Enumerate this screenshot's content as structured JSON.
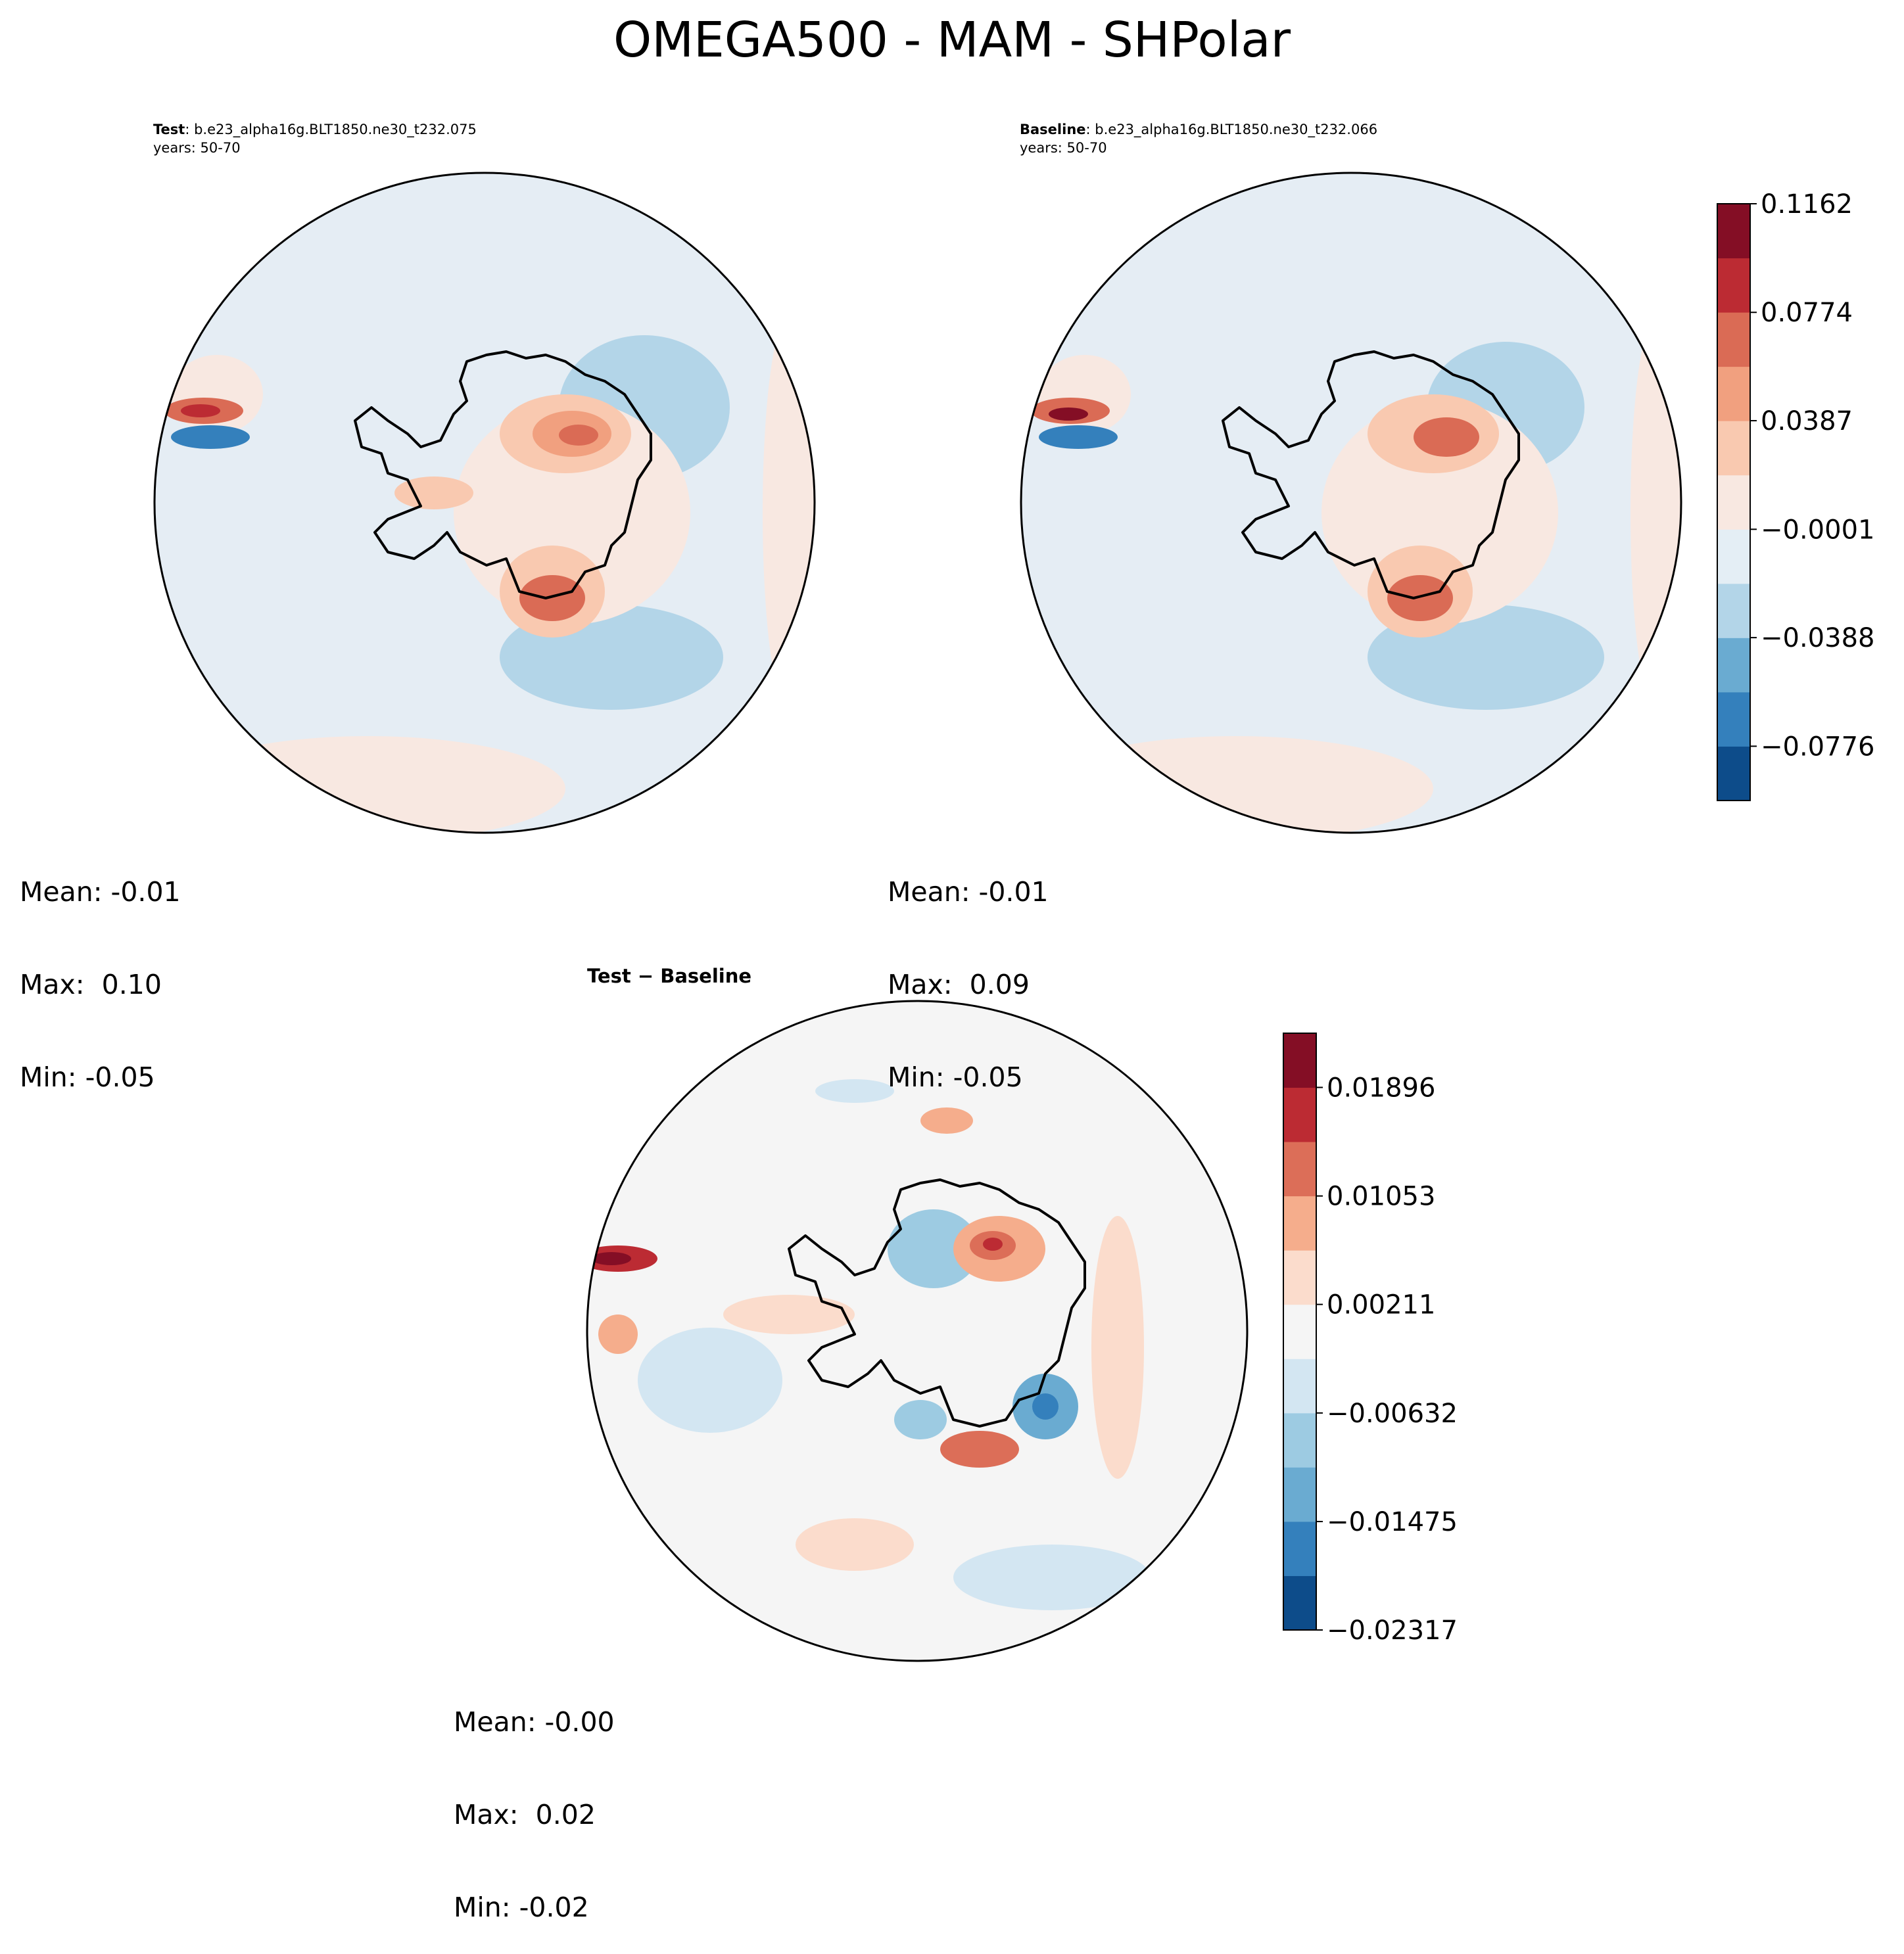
{
  "figure_title": "OMEGA500 - MAM - SHPolar",
  "colors": {
    "background_map": "#e5edf4",
    "diff_background": "#f5f5f5",
    "coastline": "#000000"
  },
  "chart_data": [
    {
      "type": "heatmap",
      "projection": "south-polar-stereographic",
      "label_prefix": "Test",
      "label_sep": ":",
      "case_name": "b.e23_alpha16g.BLT1850.ne30_t232.075",
      "years": "years: 50-70",
      "stats": {
        "mean": "Mean: -0.01",
        "max": "Max:  0.10",
        "min": "Min: -0.05"
      },
      "colorbar": "shared-test-baseline"
    },
    {
      "type": "heatmap",
      "projection": "south-polar-stereographic",
      "label_prefix": "Baseline",
      "label_sep": ":",
      "case_name": "b.e23_alpha16g.BLT1850.ne30_t232.066",
      "years": "years: 50-70",
      "stats": {
        "mean": "Mean: -0.01",
        "max": "Max:  0.09",
        "min": "Min: -0.05"
      },
      "colorbar": "shared-test-baseline"
    },
    {
      "type": "heatmap",
      "projection": "south-polar-stereographic",
      "title": "Test − Baseline",
      "stats": {
        "mean": "Mean: -0.00",
        "max": "Max:  0.02",
        "min": "Min: -0.02"
      },
      "colorbar": "difference"
    }
  ],
  "colorbars": {
    "shared": {
      "range": [
        -0.097,
        0.1162
      ],
      "tick_labels": [
        "0.1162",
        "0.0774",
        "0.0387",
        "−0.0001",
        "−0.0388",
        "−0.0776"
      ],
      "tick_values": [
        0.1162,
        0.0774,
        0.0387,
        -0.0001,
        -0.0388,
        -0.0776
      ],
      "colors": [
        "#0d4c8a",
        "#3480bc",
        "#6aabd1",
        "#b3d5e8",
        "#e4eef5",
        "#f8e8e1",
        "#f9c9b0",
        "#f1a07f",
        "#da6b55",
        "#bc2b33",
        "#840e25"
      ]
    },
    "difference": {
      "range": [
        -0.02317,
        0.02317
      ],
      "tick_labels": [
        "0.01896",
        "0.01053",
        "0.00211",
        "−0.00632",
        "−0.01475",
        "−0.02317"
      ],
      "tick_values": [
        0.01896,
        0.01053,
        0.00211,
        -0.00632,
        -0.01475,
        -0.02317
      ],
      "colors": [
        "#0d4c8a",
        "#3480bc",
        "#6aabd1",
        "#9dcbe2",
        "#d3e6f2",
        "#f5f5f5",
        "#fbdccc",
        "#f5ad8c",
        "#dc6e58",
        "#bc2b33",
        "#840e25"
      ]
    }
  }
}
